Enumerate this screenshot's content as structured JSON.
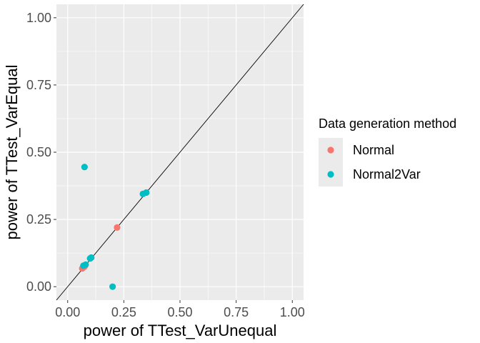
{
  "chart_data": {
    "type": "scatter",
    "title": "",
    "xlabel": "power of TTest_VarUnequal",
    "ylabel": "power of TTest_VarEqual",
    "xlim": [
      -0.05,
      1.05
    ],
    "ylim": [
      -0.05,
      1.05
    ],
    "x_ticks": [
      "0.00",
      "0.25",
      "0.50",
      "0.75",
      "1.00"
    ],
    "y_ticks": [
      "0.00",
      "0.25",
      "0.50",
      "0.75",
      "1.00"
    ],
    "tick_values": [
      0,
      0.25,
      0.5,
      0.75,
      1.0
    ],
    "grid": true,
    "panel_background": "#ebebeb",
    "reference_line": {
      "slope": 1,
      "intercept": 0,
      "color": "#000000"
    },
    "legend": {
      "title": "Data generation method",
      "placement": "right"
    },
    "series": [
      {
        "name": "Normal",
        "color": "#F8766D",
        "points": [
          {
            "x": 0.065,
            "y": 0.068
          },
          {
            "x": 0.075,
            "y": 0.075
          },
          {
            "x": 0.22,
            "y": 0.22
          }
        ]
      },
      {
        "name": "Normal2Var",
        "color": "#00BFC4",
        "points": [
          {
            "x": 0.075,
            "y": 0.445
          },
          {
            "x": 0.07,
            "y": 0.078
          },
          {
            "x": 0.08,
            "y": 0.082
          },
          {
            "x": 0.1,
            "y": 0.105
          },
          {
            "x": 0.105,
            "y": 0.108
          },
          {
            "x": 0.2,
            "y": 0.0
          },
          {
            "x": 0.335,
            "y": 0.345
          },
          {
            "x": 0.35,
            "y": 0.35
          }
        ]
      }
    ]
  }
}
